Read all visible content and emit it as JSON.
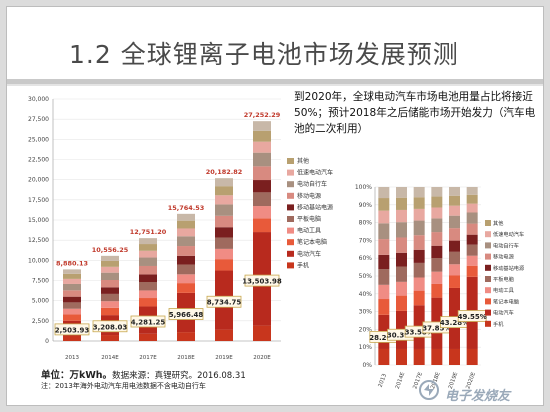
{
  "title": "1.2 全球锂离子电池市场发展预测",
  "note": "到2020年，全球电动汽车市场电池用量占比将接近50%；预计2018年之后储能市场开始发力（汽车电池的二次利用）",
  "source_label": "单位：万kWh。",
  "source_text": "数据来源：真锂研究。2016.08.31",
  "footnote": "注：2013年海外电动汽车用电池数据不含电动自行车",
  "watermark": "电子发烧友",
  "colors": {
    "segments": [
      "#c8361d",
      "#b82a1e",
      "#e85a3a",
      "#f08c84",
      "#9f6a5e",
      "#7a1f1f",
      "#d88a80",
      "#a89080",
      "#e8a8a0",
      "#b8a070",
      "#c8b8a8"
    ],
    "total_label": "#c0392b"
  },
  "chart_data": [
    {
      "type": "bar",
      "stacked": true,
      "categories": [
        "2013",
        "2014E",
        "2017E",
        "2018E",
        "2019E",
        "2020E"
      ],
      "totals": [
        8880.13,
        10556.25,
        12751.2,
        15764.53,
        20182.82,
        27252.29
      ],
      "total_labels": [
        "8,880.13",
        "10,556.25",
        "12,751.20",
        "15,764.53",
        "20,182.82",
        "27,252.29"
      ],
      "callouts": [
        2503.93,
        3208.03,
        4281.25,
        5966.48,
        8734.75,
        13503.98
      ],
      "callout_labels": [
        "2,503.93",
        "3,208.03",
        "4,281.25",
        "5,966.48",
        "8,734.75",
        "13,503.98"
      ],
      "ylim": [
        0,
        30000
      ],
      "yticks": [
        "0",
        "2,500",
        "5,000",
        "7,500",
        "10,000",
        "12,500",
        "15,000",
        "17,500",
        "20,000",
        "22,500",
        "25,000",
        "27,500",
        "30,000"
      ],
      "legend": [
        "其他",
        "低速电动汽车",
        "电动自行车",
        "移动电源",
        "移动基站电源",
        "平板电脑",
        "电动工具",
        "笔记本电脑",
        "电动汽车",
        "手机"
      ],
      "xlabel": "",
      "ylabel": ""
    },
    {
      "type": "bar",
      "stacked": true,
      "percent": true,
      "categories": [
        "2013",
        "2014E",
        "2017E",
        "2018E",
        "2019E",
        "2020E"
      ],
      "ev_share": [
        28.2,
        30.39,
        33.58,
        37.85,
        43.28,
        49.55
      ],
      "callout_labels": [
        "28.20%",
        "30.39%",
        "33.58%",
        "37.85%",
        "43.28%",
        "49.55%"
      ],
      "yticks": [
        "0%",
        "10%",
        "20%",
        "30%",
        "40%",
        "50%",
        "60%",
        "70%",
        "80%",
        "90%",
        "100%"
      ],
      "legend": [
        "其他",
        "低速电动汽车",
        "电动自行车",
        "移动电源",
        "移动基站电源",
        "平板电脑",
        "电动工具",
        "笔记本电脑",
        "电动汽车",
        "手机"
      ],
      "xlabel": "",
      "ylabel": ""
    }
  ]
}
